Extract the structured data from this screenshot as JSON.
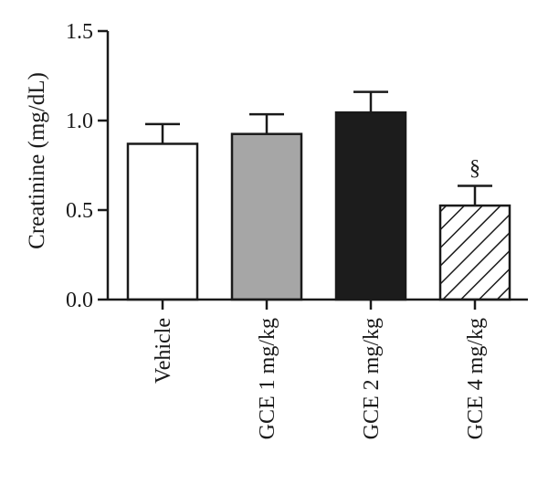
{
  "chart_data": {
    "type": "bar",
    "title": "",
    "xlabel": "",
    "ylabel": "Creatinine (mg/dL)",
    "ylim": [
      0,
      1.5
    ],
    "yticks": [
      "0.0",
      "0.5",
      "1.0",
      "1.5"
    ],
    "categories": [
      "Vehicle",
      "GCE 1 mg/kg",
      "GCE 2 mg/kg",
      "GCE 4 mg/kg"
    ],
    "values": [
      0.87,
      0.925,
      1.045,
      0.525
    ],
    "errors": [
      0.11,
      0.11,
      0.115,
      0.11
    ],
    "fills": [
      "#ffffff",
      "#a6a6a6",
      "#1c1c1c",
      "hatched"
    ],
    "annotations": [
      {
        "category": "GCE 4 mg/kg",
        "text": "§"
      }
    ],
    "grid": false,
    "legend": "none"
  }
}
